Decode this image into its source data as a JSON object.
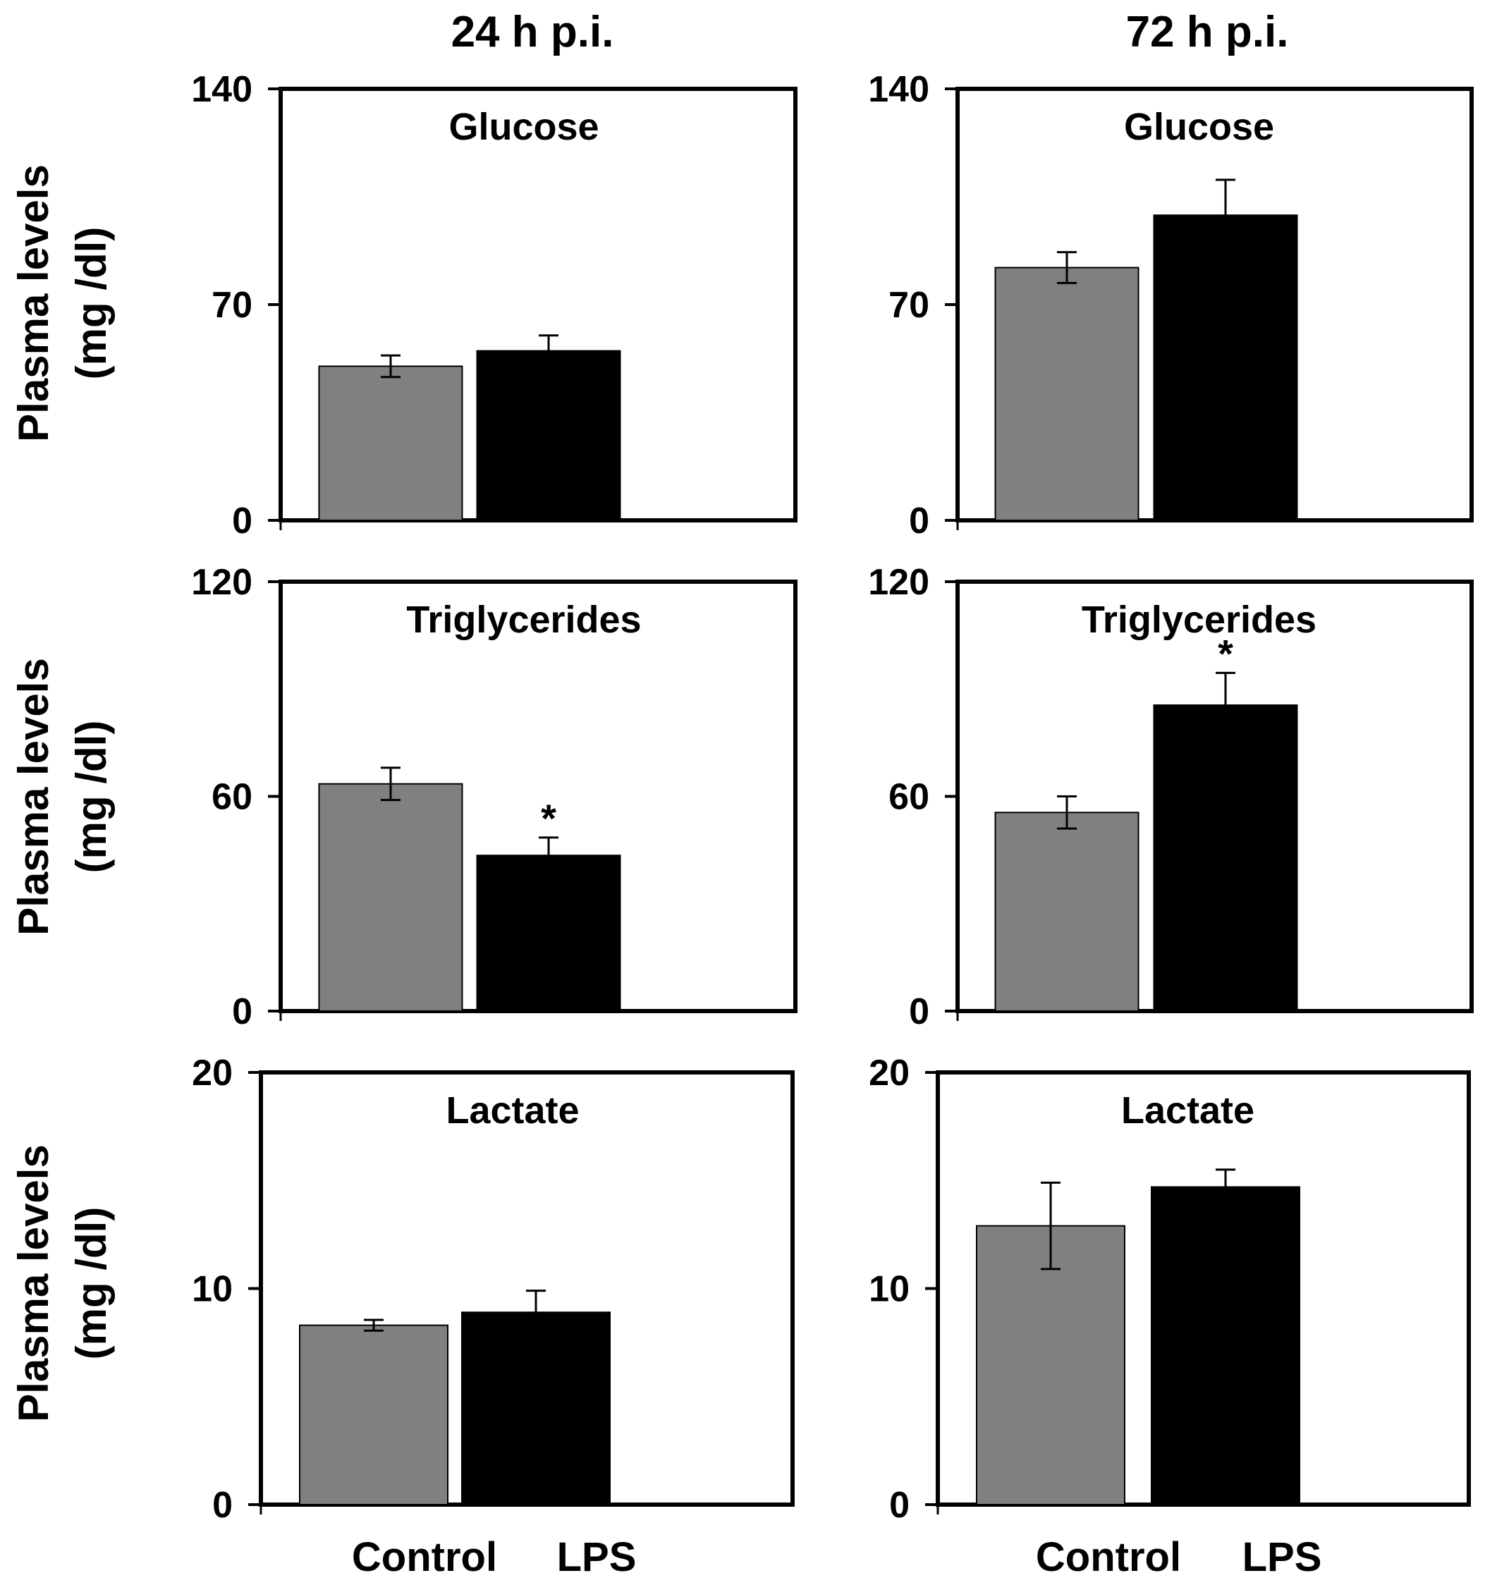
{
  "columns": [
    "24 h p.i.",
    "72 h p.i."
  ],
  "y_axis_title": {
    "line1": "Plasma levels",
    "line2": "(mg /dl)"
  },
  "categories": [
    "Control",
    "LPS"
  ],
  "colors": {
    "control": "#808080",
    "lps": "#000000",
    "axis": "#000000"
  },
  "chart_data": [
    {
      "type": "bar",
      "title": "Glucose",
      "column": "24 h p.i.",
      "categories": [
        "Control",
        "LPS"
      ],
      "values": [
        50,
        55
      ],
      "errors": [
        3.5,
        5
      ],
      "significant": [
        false,
        false
      ],
      "ylim": [
        0,
        140
      ],
      "yticks": [
        0,
        70,
        140
      ],
      "ylabel": "Plasma levels (mg /dl)"
    },
    {
      "type": "bar",
      "title": "Glucose",
      "column": "72 h p.i.",
      "categories": [
        "Control",
        "LPS"
      ],
      "values": [
        82,
        99
      ],
      "errors": [
        5,
        11.5
      ],
      "significant": [
        false,
        false
      ],
      "ylim": [
        0,
        140
      ],
      "yticks": [
        0,
        70,
        140
      ],
      "ylabel": "Plasma levels (mg /dl)"
    },
    {
      "type": "bar",
      "title": "Triglycerides",
      "column": "24 h p.i.",
      "categories": [
        "Control",
        "LPS"
      ],
      "values": [
        63.5,
        43.5
      ],
      "errors": [
        4.5,
        5
      ],
      "significant": [
        false,
        true
      ],
      "sig_marker": "*",
      "ylim": [
        0,
        120
      ],
      "yticks": [
        0,
        60,
        120
      ],
      "ylabel": "Plasma levels (mg /dl)"
    },
    {
      "type": "bar",
      "title": "Triglycerides",
      "column": "72 h p.i.",
      "categories": [
        "Control",
        "LPS"
      ],
      "values": [
        55.5,
        85.5
      ],
      "errors": [
        4.5,
        9
      ],
      "significant": [
        false,
        true
      ],
      "sig_marker": "*",
      "ylim": [
        0,
        120
      ],
      "yticks": [
        0,
        60,
        120
      ],
      "ylabel": "Plasma levels (mg /dl)"
    },
    {
      "type": "bar",
      "title": "Lactate",
      "column": "24 h p.i.",
      "categories": [
        "Control",
        "LPS"
      ],
      "values": [
        8.3,
        8.9
      ],
      "errors": [
        0.25,
        1.0
      ],
      "significant": [
        false,
        false
      ],
      "ylim": [
        0,
        20
      ],
      "yticks": [
        0,
        10,
        20
      ],
      "ylabel": "Plasma levels (mg /dl)"
    },
    {
      "type": "bar",
      "title": "Lactate",
      "column": "72 h p.i.",
      "categories": [
        "Control",
        "LPS"
      ],
      "values": [
        12.9,
        14.7
      ],
      "errors": [
        2.0,
        0.8
      ],
      "significant": [
        false,
        false
      ],
      "ylim": [
        0,
        20
      ],
      "yticks": [
        0,
        10,
        20
      ],
      "ylabel": "Plasma levels (mg /dl)"
    }
  ]
}
